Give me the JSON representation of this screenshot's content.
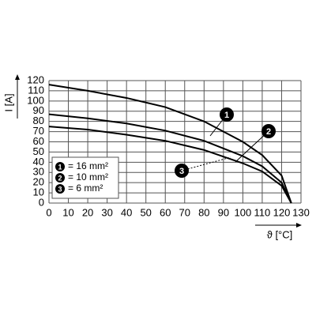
{
  "chart_data": {
    "type": "line",
    "xlabel": "ϑ [°C]",
    "ylabel": "I [A]",
    "xlim": [
      0,
      130
    ],
    "ylim": [
      0,
      120
    ],
    "xticks": [
      0,
      10,
      20,
      30,
      40,
      50,
      60,
      70,
      80,
      90,
      100,
      110,
      120,
      130
    ],
    "yticks": [
      0,
      10,
      20,
      30,
      40,
      50,
      60,
      70,
      80,
      90,
      100,
      110,
      120
    ],
    "grid": true,
    "series": [
      {
        "marker": "1",
        "name": "= 16 mm²",
        "color": "#000000",
        "x": [
          0,
          20,
          40,
          60,
          80,
          100,
          110,
          120,
          125
        ],
        "values": [
          116,
          110,
          103,
          94,
          80,
          60,
          47,
          27,
          0
        ]
      },
      {
        "marker": "2",
        "name": "= 10 mm²",
        "color": "#000000",
        "x": [
          0,
          20,
          40,
          60,
          80,
          100,
          110,
          120,
          125
        ],
        "values": [
          87,
          83,
          78,
          71,
          61,
          46,
          36,
          20,
          0
        ]
      },
      {
        "marker": "3",
        "name": "= 6 mm²",
        "color": "#000000",
        "x": [
          0,
          20,
          40,
          60,
          80,
          100,
          110,
          120,
          125
        ],
        "values": [
          75,
          72,
          67,
          61,
          52,
          39,
          31,
          17,
          0
        ]
      }
    ]
  }
}
